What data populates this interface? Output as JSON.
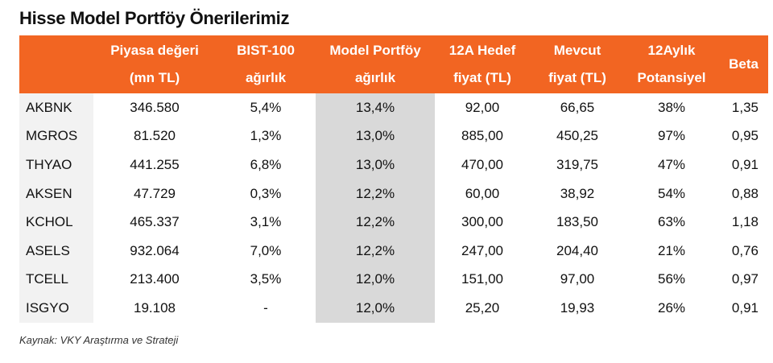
{
  "title": "Hisse Model Portföy Önerilerimiz",
  "headers": [
    {
      "l1": "",
      "l2": ""
    },
    {
      "l1": "Piyasa değeri",
      "l2": "(mn TL)"
    },
    {
      "l1": "BIST-100",
      "l2": "ağırlık"
    },
    {
      "l1": "Model Portföy",
      "l2": "ağırlık"
    },
    {
      "l1": "12A Hedef",
      "l2": "fiyat (TL)"
    },
    {
      "l1": "Mevcut",
      "l2": "fiyat (TL)"
    },
    {
      "l1": "12Aylık",
      "l2": "Potansiyel"
    },
    {
      "l1": "",
      "l2": "Beta"
    }
  ],
  "rows": [
    [
      "AKBNK",
      "346.580",
      "5,4%",
      "13,4%",
      "92,00",
      "66,65",
      "38%",
      "1,35"
    ],
    [
      "MGROS",
      "81.520",
      "1,3%",
      "13,0%",
      "885,00",
      "450,25",
      "97%",
      "0,95"
    ],
    [
      "THYAO",
      "441.255",
      "6,8%",
      "13,0%",
      "470,00",
      "319,75",
      "47%",
      "0,91"
    ],
    [
      "AKSEN",
      "47.729",
      "0,3%",
      "12,2%",
      "60,00",
      "38,92",
      "54%",
      "0,88"
    ],
    [
      "KCHOL",
      "465.337",
      "3,1%",
      "12,2%",
      "300,00",
      "183,50",
      "63%",
      "1,18"
    ],
    [
      "ASELS",
      "932.064",
      "7,0%",
      "12,2%",
      "247,00",
      "204,40",
      "21%",
      "0,76"
    ],
    [
      "TCELL",
      "213.400",
      "3,5%",
      "12,0%",
      "151,00",
      "97,00",
      "56%",
      "0,97"
    ],
    [
      "ISGYO",
      "19.108",
      "-",
      "12,0%",
      "25,20",
      "19,93",
      "26%",
      "0,91"
    ]
  ],
  "source": "Kaynak: VKY Araştırma ve Strateji",
  "colors": {
    "header_bg": "#f26522",
    "ticker_bg": "#f2f2f2",
    "highlight_col_bg": "#d9d9d9"
  }
}
